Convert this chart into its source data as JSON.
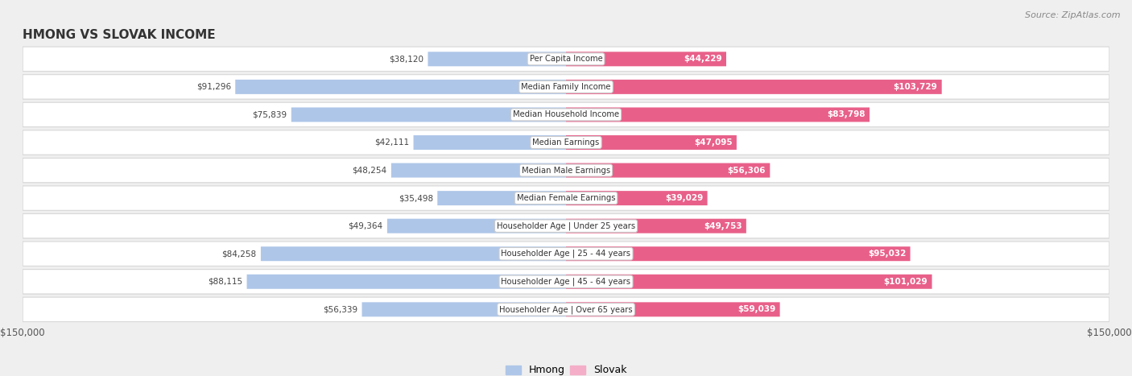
{
  "title": "HMONG VS SLOVAK INCOME",
  "source": "Source: ZipAtlas.com",
  "categories": [
    "Per Capita Income",
    "Median Family Income",
    "Median Household Income",
    "Median Earnings",
    "Median Male Earnings",
    "Median Female Earnings",
    "Householder Age | Under 25 years",
    "Householder Age | 25 - 44 years",
    "Householder Age | 45 - 64 years",
    "Householder Age | Over 65 years"
  ],
  "hmong_values": [
    38120,
    91296,
    75839,
    42111,
    48254,
    35498,
    49364,
    84258,
    88115,
    56339
  ],
  "slovak_values": [
    44229,
    103729,
    83798,
    47095,
    56306,
    39029,
    49753,
    95032,
    101029,
    59039
  ],
  "hmong_labels": [
    "$38,120",
    "$91,296",
    "$75,839",
    "$42,111",
    "$48,254",
    "$35,498",
    "$49,364",
    "$84,258",
    "$88,115",
    "$56,339"
  ],
  "slovak_labels": [
    "$44,229",
    "$103,729",
    "$83,798",
    "$47,095",
    "$56,306",
    "$39,029",
    "$49,753",
    "$95,032",
    "$101,029",
    "$59,039"
  ],
  "max_value": 150000,
  "hmong_color_light": "#aec6e8",
  "hmong_color_dark": "#5b8ec4",
  "slovak_color_light": "#f4aec8",
  "slovak_color_dark": "#e8608a",
  "row_bg_color": "#ffffff",
  "row_border_color": "#d8d8d8",
  "background_color": "#efefef",
  "bar_height": 0.52,
  "figsize": [
    14.06,
    4.67
  ],
  "dpi": 100
}
